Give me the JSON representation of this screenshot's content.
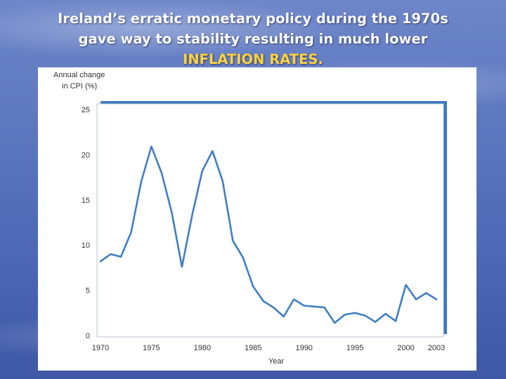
{
  "slide": {
    "title_line1": "Ireland’s erratic monetary policy  during the 1970s",
    "title_line2": "gave way to stability resulting in much lower",
    "title_line3": "INFLATION RATES."
  },
  "colors": {
    "line": "#3f7fc1",
    "frame_shadow": "#3b78c0",
    "frame": "#2a5f9e",
    "accent_text": "#ffd23a"
  },
  "chart_data": {
    "type": "line",
    "title": "",
    "ylabel_line1": "Annual change",
    "ylabel_line2": "in CPI (%)",
    "xlabel": "Year",
    "xlim": [
      1970,
      2003
    ],
    "ylim": [
      0,
      25
    ],
    "x_ticks": [
      1970,
      1975,
      1980,
      1985,
      1990,
      1995,
      2000,
      2003
    ],
    "x_tick_labels": [
      "1970",
      "1975",
      "1980",
      "1985",
      "1990",
      "1995",
      "2000",
      "2003"
    ],
    "y_ticks": [
      0,
      5,
      10,
      15,
      20,
      25
    ],
    "y_tick_labels": [
      "0",
      "5",
      "10",
      "15",
      "20",
      "25"
    ],
    "grid": false,
    "legend": "none",
    "series": [
      {
        "x": [
          1970,
          1971,
          1972,
          1973,
          1974,
          1975,
          1976,
          1977,
          1978,
          1979,
          1980,
          1981,
          1982,
          1983,
          1984,
          1985,
          1986,
          1987,
          1988,
          1989,
          1990,
          1991,
          1992,
          1993,
          1994,
          1995,
          1996,
          1997,
          1998,
          1999,
          2000,
          2001,
          2002,
          2003
        ],
        "y": [
          8.2,
          9.0,
          8.7,
          11.4,
          17.0,
          20.9,
          18.0,
          13.6,
          7.6,
          13.3,
          18.2,
          20.4,
          17.1,
          10.5,
          8.6,
          5.4,
          3.8,
          3.1,
          2.1,
          4.0,
          3.3,
          3.2,
          3.1,
          1.4,
          2.3,
          2.5,
          2.2,
          1.5,
          2.4,
          1.6,
          5.6,
          4.0,
          4.7,
          4.0
        ]
      }
    ]
  }
}
